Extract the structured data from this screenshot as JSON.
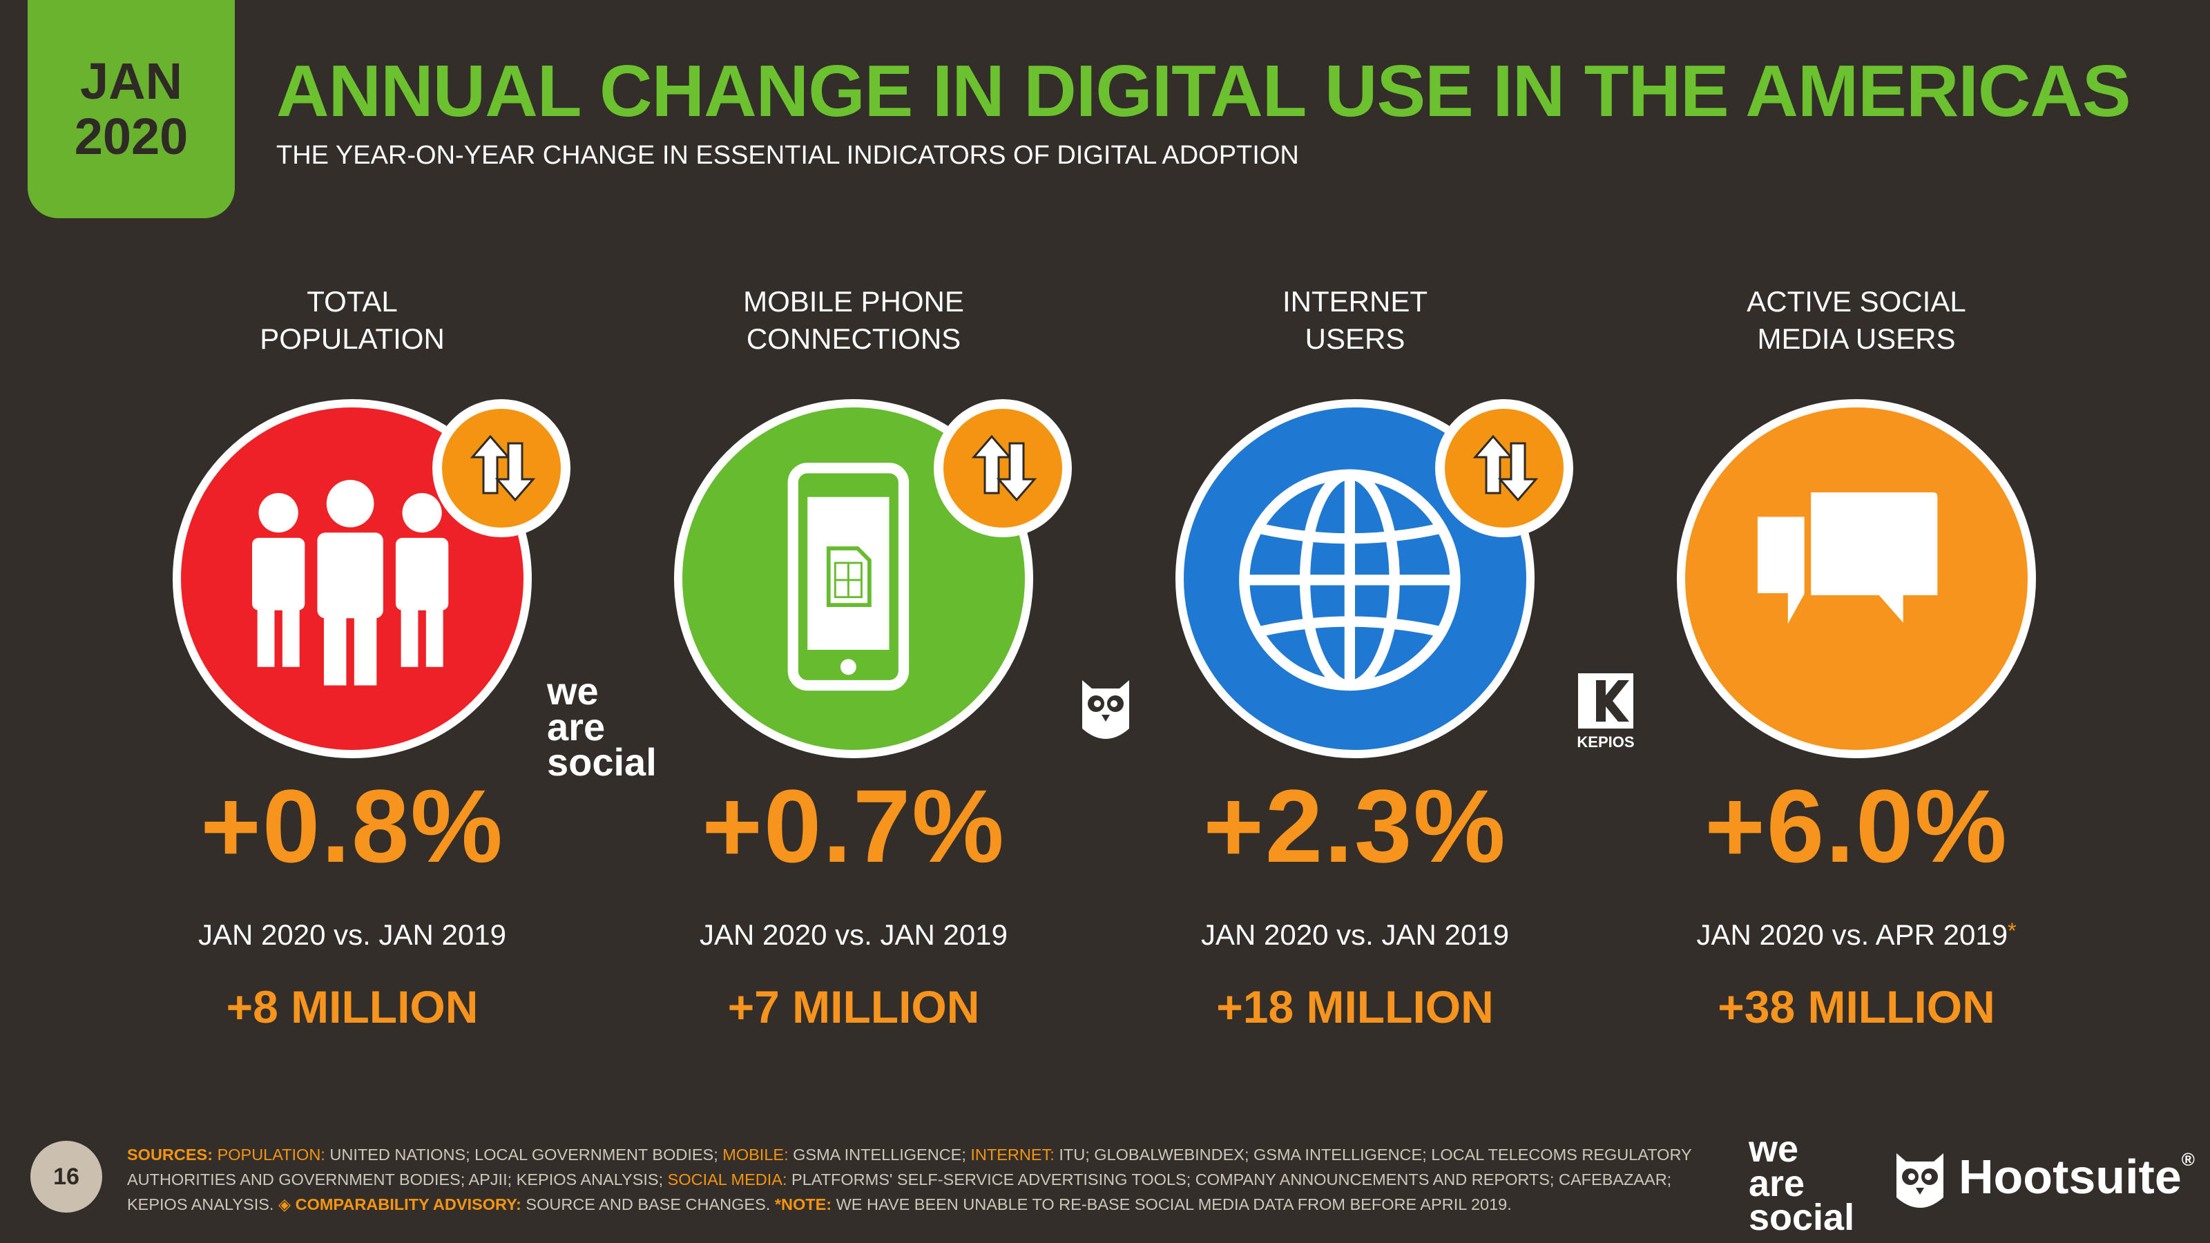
{
  "header": {
    "date_month": "JAN",
    "date_year": "2020",
    "title": "ANNUAL CHANGE IN DIGITAL USE IN THE AMERICAS",
    "subtitle": "THE YEAR-ON-YEAR CHANGE IN ESSENTIAL INDICATORS OF DIGITAL ADOPTION"
  },
  "colors": {
    "background": "#332e2a",
    "title_green": "#6cc12e",
    "accent_orange": "#f7941d",
    "population_red": "#ee2226",
    "mobile_green": "#66bb2f",
    "internet_blue": "#1f78d1",
    "social_orange": "#f7941d"
  },
  "metrics": [
    {
      "label_line1": "TOTAL",
      "label_line2": "POPULATION",
      "icon": "people-icon",
      "change_pct": "+0.8%",
      "comparison": "JAN 2020 vs. JAN 2019",
      "absolute_change": "+8 MILLION"
    },
    {
      "label_line1": "MOBILE PHONE",
      "label_line2": "CONNECTIONS",
      "icon": "mobile-phone-icon",
      "change_pct": "+0.7%",
      "comparison": "JAN 2020 vs. JAN 2019",
      "absolute_change": "+7 MILLION"
    },
    {
      "label_line1": "INTERNET",
      "label_line2": "USERS",
      "icon": "globe-icon",
      "change_pct": "+2.3%",
      "comparison": "JAN 2020 vs. JAN 2019",
      "absolute_change": "+18 MILLION"
    },
    {
      "label_line1": "ACTIVE SOCIAL",
      "label_line2": "MEDIA USERS",
      "icon": "speech-bubbles-icon",
      "change_pct": "+6.0%",
      "comparison": "JAN 2020 vs. APR 2019",
      "comparison_mark": "*",
      "absolute_change": "+38 MILLION"
    }
  ],
  "logos": {
    "we": "we",
    "are": "are",
    "social": "social",
    "kepios": "KEPIOS",
    "hootsuite": "Hootsuite",
    "registered": "®"
  },
  "footer": {
    "page_number": "16",
    "sources": {
      "sources_label": "SOURCES:",
      "population_label": "POPULATION:",
      "population_text": "UNITED NATIONS; LOCAL GOVERNMENT BODIES;",
      "mobile_label": "MOBILE:",
      "mobile_text": "GSMA INTELLIGENCE;",
      "internet_label": "INTERNET:",
      "internet_text": "ITU; GLOBALWEBINDEX; GSMA INTELLIGENCE; LOCAL TELECOMS REGULATORY AUTHORITIES AND GOVERNMENT BODIES; APJII; KEPIOS ANALYSIS;",
      "social_label": "SOCIAL MEDIA:",
      "social_text": "PLATFORMS' SELF-SERVICE ADVERTISING TOOLS; COMPANY ANNOUNCEMENTS AND REPORTS; CAFEBAZAAR; KEPIOS ANALYSIS.",
      "advisory_label": "◈ COMPARABILITY ADVISORY:",
      "advisory_text": "SOURCE AND BASE CHANGES.",
      "note_label": "*NOTE:",
      "note_text": "WE HAVE BEEN UNABLE TO RE-BASE SOCIAL MEDIA DATA FROM BEFORE APRIL 2019."
    }
  }
}
